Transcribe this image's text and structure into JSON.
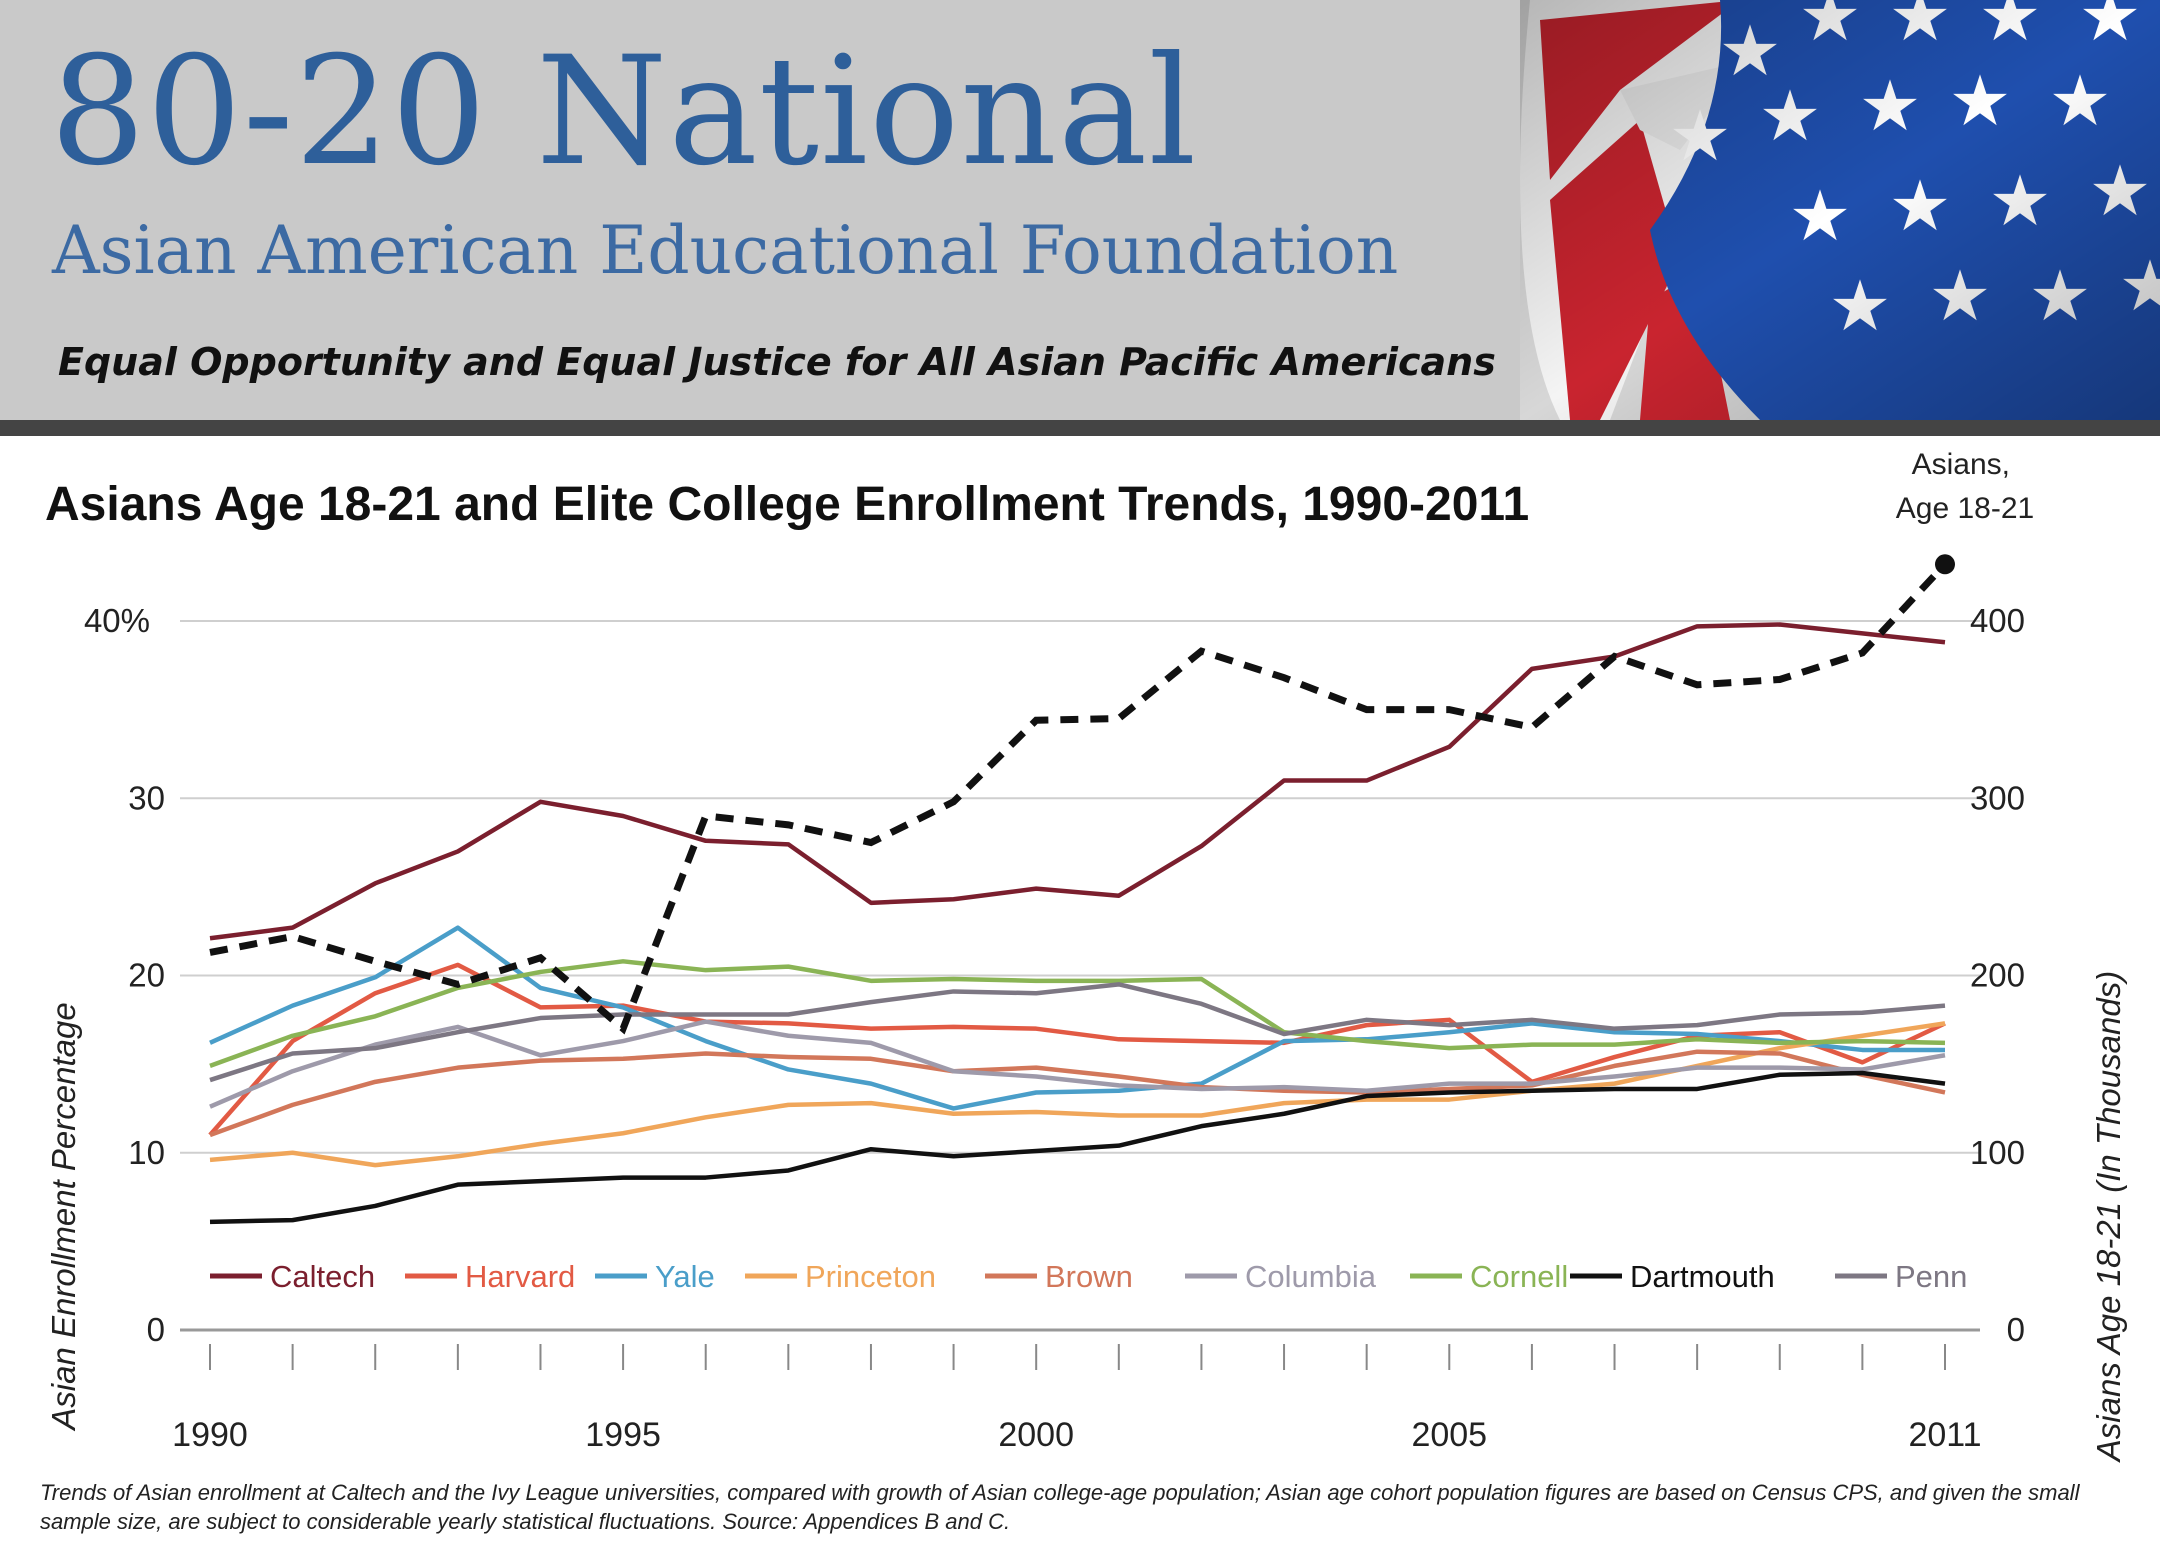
{
  "banner": {
    "org_name": "80-20 National",
    "subtitle": "Asian American Educational Foundation",
    "tagline": "Equal Opportunity and Equal Justice for All Asian Pacific Americans"
  },
  "footnote": "Trends of Asian enrollment at Caltech and the Ivy League universities, compared with growth of Asian college-age population; Asian age cohort population figures are based on Census CPS, and given the small sample size, are subject to considerable yearly statistical fluctuations. Source: Appendices B and C.",
  "chart_data": {
    "type": "line",
    "title": "Asians Age 18-21 and Elite College Enrollment Trends, 1990-2011",
    "ylabel": "Asian Enrollment Percentage",
    "y2label": "Asians Age 18-21 (In Thousands)",
    "x": [
      1990,
      1991,
      1992,
      1993,
      1994,
      1995,
      1996,
      1997,
      1998,
      1999,
      2000,
      2001,
      2002,
      2003,
      2004,
      2005,
      2006,
      2007,
      2008,
      2009,
      2010,
      2011
    ],
    "x_tick_labels": [
      "1990",
      "1995",
      "2000",
      "2005",
      "2011"
    ],
    "y_tick_labels": [
      "0",
      "10",
      "20",
      "30",
      "40%"
    ],
    "y2_tick_labels": [
      "0",
      "100",
      "200",
      "300",
      "400"
    ],
    "ylim": [
      0,
      40
    ],
    "y2lim": [
      0,
      400
    ],
    "grid": true,
    "legend_position": "bottom",
    "series": [
      {
        "name": "Caltech",
        "color": "#7b1f2e",
        "values": [
          22.1,
          22.7,
          25.2,
          27.0,
          29.8,
          29.0,
          27.6,
          27.4,
          24.1,
          24.3,
          24.9,
          24.5,
          27.3,
          31.0,
          31.0,
          32.9,
          37.3,
          38.0,
          39.7,
          39.8,
          39.3,
          38.8
        ]
      },
      {
        "name": "Harvard",
        "color": "#e25a44",
        "values": [
          11.0,
          16.3,
          19.0,
          20.6,
          18.2,
          18.3,
          17.4,
          17.3,
          17.0,
          17.1,
          17.0,
          16.4,
          16.3,
          16.2,
          17.2,
          17.5,
          14.0,
          15.4,
          16.6,
          16.8,
          15.1,
          17.3
        ]
      },
      {
        "name": "Yale",
        "color": "#4a9ec9",
        "values": [
          16.2,
          18.3,
          19.9,
          22.7,
          19.3,
          18.2,
          16.3,
          14.7,
          13.9,
          12.5,
          13.4,
          13.5,
          13.9,
          16.3,
          16.4,
          16.8,
          17.3,
          16.8,
          16.7,
          16.3,
          15.8,
          15.8
        ]
      },
      {
        "name": "Princeton",
        "color": "#f0a65a",
        "values": [
          9.6,
          10.0,
          9.3,
          9.8,
          10.5,
          11.1,
          12.0,
          12.7,
          12.8,
          12.2,
          12.3,
          12.1,
          12.1,
          12.8,
          13.0,
          13.0,
          13.5,
          13.9,
          14.9,
          15.9,
          16.6,
          17.3
        ]
      },
      {
        "name": "Brown",
        "color": "#d2775a",
        "values": [
          11.0,
          12.7,
          14.0,
          14.8,
          15.2,
          15.3,
          15.6,
          15.4,
          15.3,
          14.6,
          14.8,
          14.3,
          13.7,
          13.5,
          13.4,
          13.6,
          13.8,
          14.9,
          15.7,
          15.6,
          14.4,
          13.4
        ]
      },
      {
        "name": "Columbia",
        "color": "#9e9aaa",
        "values": [
          12.6,
          14.6,
          16.1,
          17.1,
          15.5,
          16.3,
          17.4,
          16.6,
          16.2,
          14.6,
          14.3,
          13.8,
          13.6,
          13.7,
          13.5,
          13.9,
          13.9,
          14.3,
          14.8,
          14.8,
          14.7,
          15.5
        ]
      },
      {
        "name": "Cornell",
        "color": "#8ab455",
        "values": [
          14.9,
          16.6,
          17.7,
          19.3,
          20.2,
          20.8,
          20.3,
          20.5,
          19.7,
          19.8,
          19.7,
          19.7,
          19.8,
          16.8,
          16.3,
          15.9,
          16.1,
          16.1,
          16.4,
          16.2,
          16.3,
          16.2
        ]
      },
      {
        "name": "Dartmouth",
        "color": "#111111",
        "values": [
          6.1,
          6.2,
          7.0,
          8.2,
          8.4,
          8.6,
          8.6,
          9.0,
          10.2,
          9.8,
          10.1,
          10.4,
          11.5,
          12.2,
          13.2,
          13.4,
          13.5,
          13.6,
          13.6,
          14.4,
          14.5,
          13.9
        ]
      },
      {
        "name": "Penn",
        "color": "#7d7783",
        "values": [
          14.1,
          15.6,
          15.9,
          16.8,
          17.6,
          17.8,
          17.8,
          17.8,
          18.5,
          19.1,
          19.0,
          19.5,
          18.4,
          16.7,
          17.5,
          17.2,
          17.5,
          17.0,
          17.2,
          17.8,
          17.9,
          18.3
        ]
      }
    ],
    "secondary_series": {
      "name": "Asians, Age 18-21",
      "label_lines": [
        "Asians,",
        "Age 18-21"
      ],
      "axis": "right",
      "style": "dashed",
      "color": "#111111",
      "values": [
        213,
        222,
        208,
        195,
        210,
        170,
        290,
        285,
        275,
        298,
        344,
        345,
        383,
        368,
        350,
        350,
        340,
        380,
        364,
        367,
        382,
        432
      ]
    }
  }
}
